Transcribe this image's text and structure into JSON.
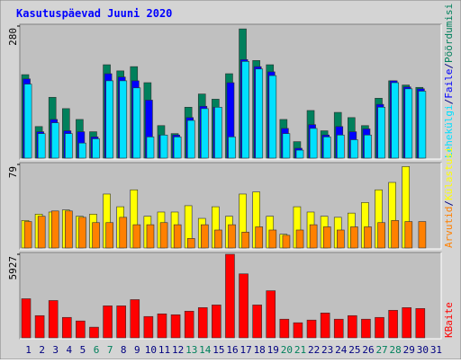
{
  "title": "Kasutuspäevad Juuni 2020",
  "legend_separator": "/",
  "chart_data": [
    {
      "type": "bar",
      "ylim": [
        0,
        280
      ],
      "yticks": [
        280
      ],
      "series": [
        {
          "name": "Pöördumisi",
          "color": "#00805c",
          "values": [
            177,
            67,
            129,
            105,
            82,
            56,
            198,
            185,
            194,
            160,
            69,
            52,
            108,
            136,
            125,
            179,
            274,
            207,
            198,
            82,
            35,
            101,
            58,
            97,
            86,
            69,
            127,
            164,
            155,
            150,
            0
          ]
        },
        {
          "name": "Faile",
          "color": "#0000ff",
          "values": [
            168,
            56,
            82,
            58,
            56,
            45,
            179,
            172,
            164,
            123,
            49,
            49,
            86,
            110,
            108,
            160,
            209,
            194,
            183,
            63,
            21,
            71,
            49,
            67,
            56,
            62,
            114,
            164,
            151,
            147,
            0
          ]
        },
        {
          "name": "Lehekülgi",
          "color": "#00e0ff",
          "values": [
            157,
            52,
            75,
            52,
            32,
            41,
            164,
            164,
            149,
            45,
            49,
            45,
            80,
            105,
            108,
            45,
            205,
            189,
            175,
            52,
            17,
            63,
            45,
            49,
            39,
            49,
            108,
            160,
            147,
            142,
            0
          ]
        }
      ]
    },
    {
      "type": "bar",
      "ylim": [
        0,
        79
      ],
      "yticks": [
        79
      ],
      "series": [
        {
          "name": "Külastusi",
          "color": "#ffff00",
          "values": [
            26,
            32,
            34,
            36,
            30,
            32,
            51,
            39,
            55,
            30,
            34,
            34,
            40,
            28,
            39,
            30,
            51,
            53,
            30,
            13,
            39,
            34,
            30,
            29,
            33,
            43,
            55,
            62,
            77,
            0,
            0
          ]
        },
        {
          "name": "Arvutid",
          "color": "#ff8000",
          "values": [
            25,
            30,
            35,
            35,
            29,
            24,
            24,
            29,
            22,
            22,
            24,
            22,
            9,
            22,
            17,
            22,
            15,
            20,
            17,
            12,
            17,
            22,
            20,
            17,
            20,
            20,
            24,
            26,
            25,
            25,
            0
          ]
        }
      ]
    },
    {
      "type": "bar",
      "ylim": [
        0,
        5927
      ],
      "yticks": [
        5927
      ],
      "categories": [
        "1",
        "2",
        "3",
        "4",
        "5",
        "6",
        "7",
        "8",
        "9",
        "10",
        "11",
        "12",
        "13",
        "14",
        "15",
        "16",
        "17",
        "18",
        "19",
        "20",
        "21",
        "22",
        "23",
        "24",
        "25",
        "26",
        "27",
        "28",
        "29",
        "30",
        "31"
      ],
      "highlight": [
        "6",
        "7",
        "13",
        "14",
        "20",
        "21",
        "27",
        "28"
      ],
      "highlight_color": "#00805c",
      "category_color": "#000080",
      "series": [
        {
          "name": "KBaite",
          "color": "#ff0000",
          "values": [
            2774,
            1577,
            2648,
            1450,
            1198,
            757,
            2270,
            2270,
            2711,
            1514,
            1702,
            1639,
            1892,
            2144,
            2333,
            5927,
            4540,
            2333,
            3342,
            1324,
            1072,
            1261,
            1765,
            1324,
            1577,
            1324,
            1450,
            1955,
            2144,
            2081,
            0
          ]
        }
      ]
    }
  ]
}
